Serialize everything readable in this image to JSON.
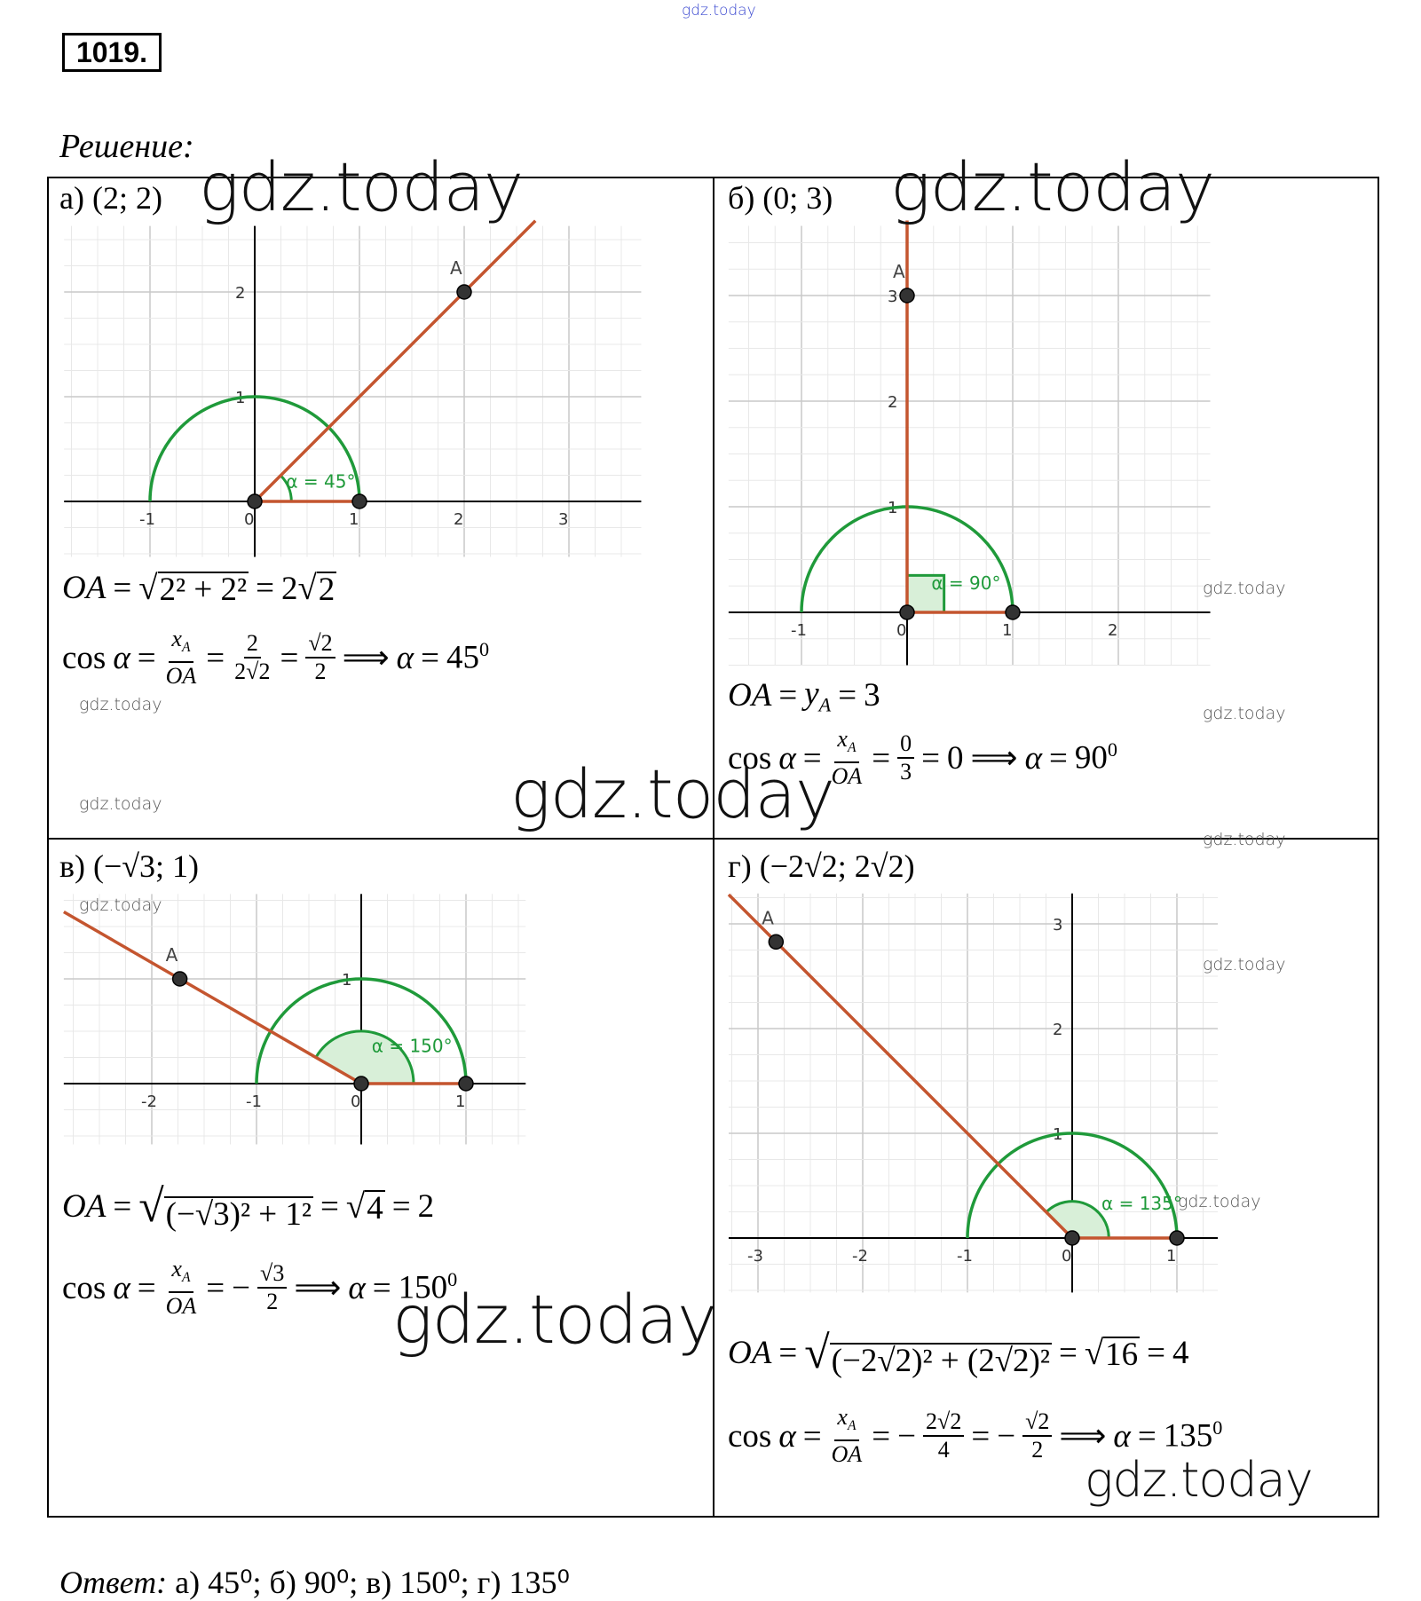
{
  "problem_number": "1019.",
  "solution_label": "Решение:",
  "panels": [
    {
      "label": "а) (2; 2)",
      "point_label": "A",
      "point": [
        2,
        2
      ],
      "angle_deg": 45,
      "angle_label": "α = 45°",
      "x_ticks": [
        "-1",
        "0",
        "1",
        "2",
        "3"
      ],
      "y_ticks": [
        "1",
        "2"
      ],
      "oa": {
        "lhs": "OA",
        "eq": "=",
        "rad": "2² + 2²",
        "eq2": "=",
        "coef": "2",
        "rad2": "2"
      },
      "cos": {
        "cos": "cos",
        "alpha": "α",
        "eq": "=",
        "num1": "x",
        "sub1": "A",
        "den1": "OA",
        "eq2": "=",
        "num2": "2",
        "den2": "2√2",
        "eq3": "=",
        "num3": "√2",
        "den3": "2",
        "implies": "⟹",
        "alpha2": "α",
        "eq4": "=",
        "result": "45",
        "deg": "0"
      }
    },
    {
      "label": "б) (0; 3)",
      "point_label": "A",
      "point": [
        0,
        3
      ],
      "angle_deg": 90,
      "angle_label": "α = 90°",
      "x_ticks": [
        "-1",
        "0",
        "1",
        "2"
      ],
      "y_ticks": [
        "1",
        "2",
        "3"
      ],
      "oa": {
        "lhs": "OA",
        "eq": "=",
        "y": "y",
        "ysub": "A",
        "eq2": "=",
        "val": "3"
      },
      "cos": {
        "cos": "cos",
        "alpha": "α",
        "eq": "=",
        "num1": "x",
        "sub1": "A",
        "den1": "OA",
        "eq2": "=",
        "num2": "0",
        "den2": "3",
        "eq3": "=",
        "val": "0",
        "implies": "⟹",
        "alpha2": "α",
        "eq4": "=",
        "result": "90",
        "deg": "0"
      }
    },
    {
      "label": "в) (−√3; 1)",
      "point_label": "A",
      "point": [
        -1.732,
        1
      ],
      "angle_deg": 150,
      "angle_label": "α = 150°",
      "x_ticks": [
        "-2",
        "-1",
        "0",
        "1"
      ],
      "y_ticks": [
        "1"
      ],
      "oa": {
        "lhs": "OA",
        "eq": "=",
        "rad": "(−√3)² + 1²",
        "eq2": "=",
        "rad2": "4",
        "eq3": "=",
        "val": "2"
      },
      "cos": {
        "cos": "cos",
        "alpha": "α",
        "eq": "=",
        "num1": "x",
        "sub1": "A",
        "den1": "OA",
        "eq2": "=",
        "minus": "−",
        "num2": "√3",
        "den2": "2",
        "implies": "⟹",
        "alpha2": "α",
        "eq4": "=",
        "result": "150",
        "deg": "0"
      }
    },
    {
      "label": "г) (−2√2; 2√2)",
      "point_label": "A",
      "point": [
        -2.828,
        2.828
      ],
      "angle_deg": 135,
      "angle_label": "α = 135°",
      "x_ticks": [
        "-3",
        "-2",
        "-1",
        "0",
        "1"
      ],
      "y_ticks": [
        "1",
        "2",
        "3"
      ],
      "oa": {
        "lhs": "OA",
        "eq": "=",
        "rad": "(−2√2)² + (2√2)²",
        "eq2": "=",
        "rad2": "16",
        "eq3": "=",
        "val": "4"
      },
      "cos": {
        "cos": "cos",
        "alpha": "α",
        "eq": "=",
        "num1": "x",
        "sub1": "A",
        "den1": "OA",
        "eq2": "=",
        "minus": "−",
        "num2": "2√2",
        "den2": "4",
        "eq3": "=",
        "minus2": "−",
        "num3": "√2",
        "den3": "2",
        "implies": "⟹",
        "alpha2": "α",
        "eq4": "=",
        "result": "135",
        "deg": "0"
      }
    }
  ],
  "answer": {
    "label": "Ответ:",
    "text": " а) 45⁰; б) 90⁰; в) 150⁰; г) 135⁰"
  },
  "watermarks": {
    "top": "gdz.today",
    "big": "gdz.today",
    "small": "gdz.today"
  },
  "colors": {
    "ray": "#c4552f",
    "arc": "#1f9a3a",
    "sector": "#d8efd8",
    "point": "#333333",
    "grid_major": "#c9c9c9",
    "grid_minor": "#e8e8e8"
  }
}
